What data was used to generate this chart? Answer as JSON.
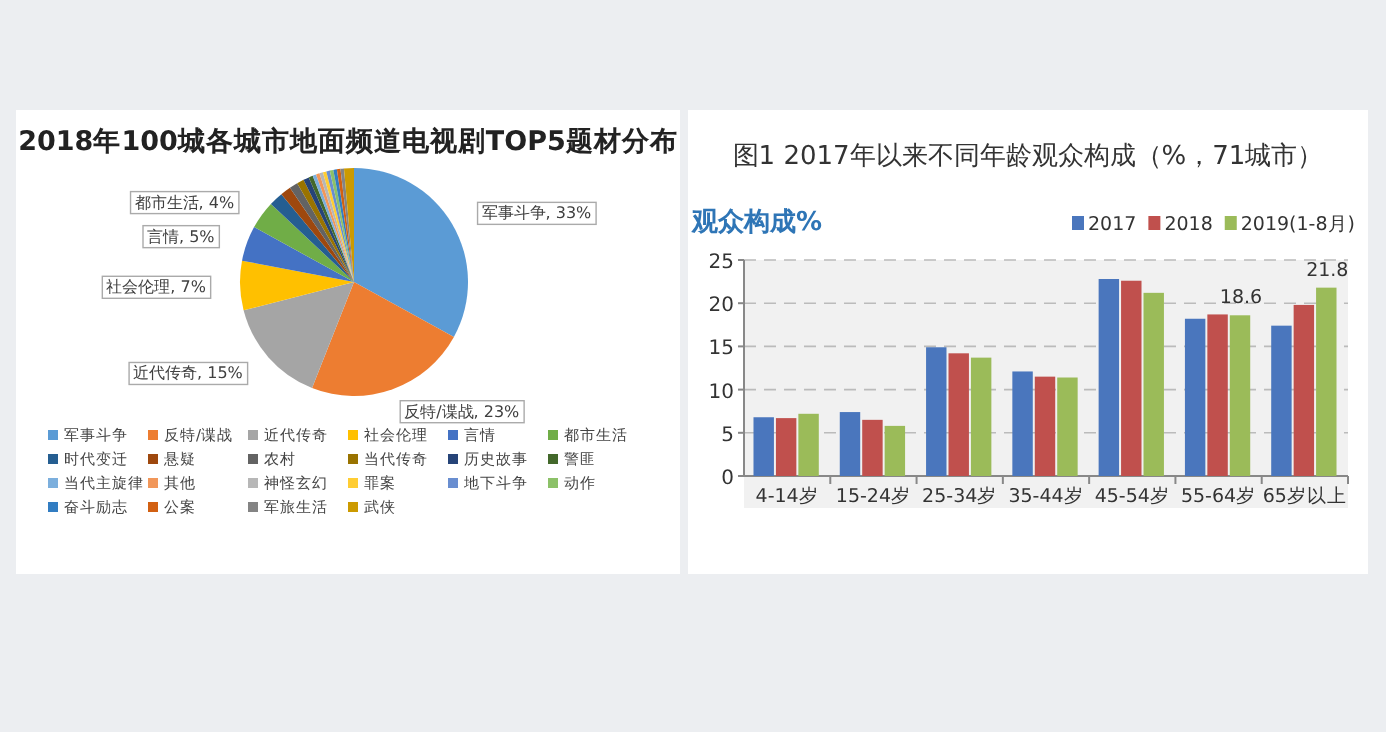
{
  "chart_data": [
    {
      "type": "pie",
      "title": "2018年100城各城市地面频道电视剧TOP5题材分布",
      "legend": "bottom",
      "categories": [
        "军事斗争",
        "反特/谍战",
        "近代传奇",
        "社会伦理",
        "言情",
        "都市生活",
        "时代变迁",
        "悬疑",
        "农村",
        "当代传奇",
        "历史故事",
        "警匪",
        "当代主旋律",
        "其他",
        "神怪玄幻",
        "罪案",
        "地下斗争",
        "动作",
        "奋斗励志",
        "公案",
        "军旅生活",
        "武侠"
      ],
      "values": [
        33,
        23,
        15,
        7,
        5,
        4,
        2,
        1.5,
        1.2,
        1,
        0.8,
        0.6,
        0.5,
        0.5,
        0.5,
        0.5,
        0.5,
        0.5,
        0.5,
        0.5,
        0.5,
        1.4
      ],
      "colors": [
        "#5b9bd5",
        "#ed7d31",
        "#a5a5a5",
        "#ffc000",
        "#4472c4",
        "#70ad47",
        "#255e91",
        "#9e480e",
        "#636363",
        "#997300",
        "#264478",
        "#43682b",
        "#7cafdd",
        "#f1975a",
        "#b7b7b7",
        "#ffcd33",
        "#698ed0",
        "#8cc168",
        "#327dc2",
        "#d26012",
        "#848484",
        "#cc9a00"
      ],
      "value_labels": [
        "军事斗争, 33%",
        "反特/谍战, 23%",
        "近代传奇, 15%",
        "社会伦理, 7%",
        "言情, 5%",
        "都市生活, 4%",
        null,
        null,
        null,
        null,
        null,
        null,
        null,
        null,
        null,
        null,
        null,
        null,
        null,
        null,
        null,
        null
      ]
    },
    {
      "type": "bar",
      "title": "图1 2017年以来不同年龄观众构成（%，71城市）",
      "ylabel": "观众构成%",
      "legend": "top right",
      "grid": "y",
      "categories": [
        "4-14岁",
        "15-24岁",
        "25-34岁",
        "35-44岁",
        "45-54岁",
        "55-64岁",
        "65岁以上"
      ],
      "ylim": [
        0,
        25
      ],
      "yticks": [
        0,
        5,
        10,
        15,
        20,
        25
      ],
      "series": [
        {
          "name": "2017",
          "color": "#4a76bd",
          "values": [
            6.8,
            7.4,
            14.9,
            12.1,
            22.8,
            18.2,
            17.4
          ]
        },
        {
          "name": "2018",
          "color": "#c0504d",
          "values": [
            6.7,
            6.5,
            14.2,
            11.5,
            22.6,
            18.7,
            19.8
          ]
        },
        {
          "name": "2019(1-8月)",
          "color": "#9bbb59",
          "values": [
            7.2,
            5.8,
            13.7,
            11.4,
            21.2,
            18.6,
            21.8
          ],
          "value_labels": [
            null,
            null,
            null,
            null,
            null,
            "18.6",
            "21.8"
          ]
        }
      ]
    }
  ]
}
